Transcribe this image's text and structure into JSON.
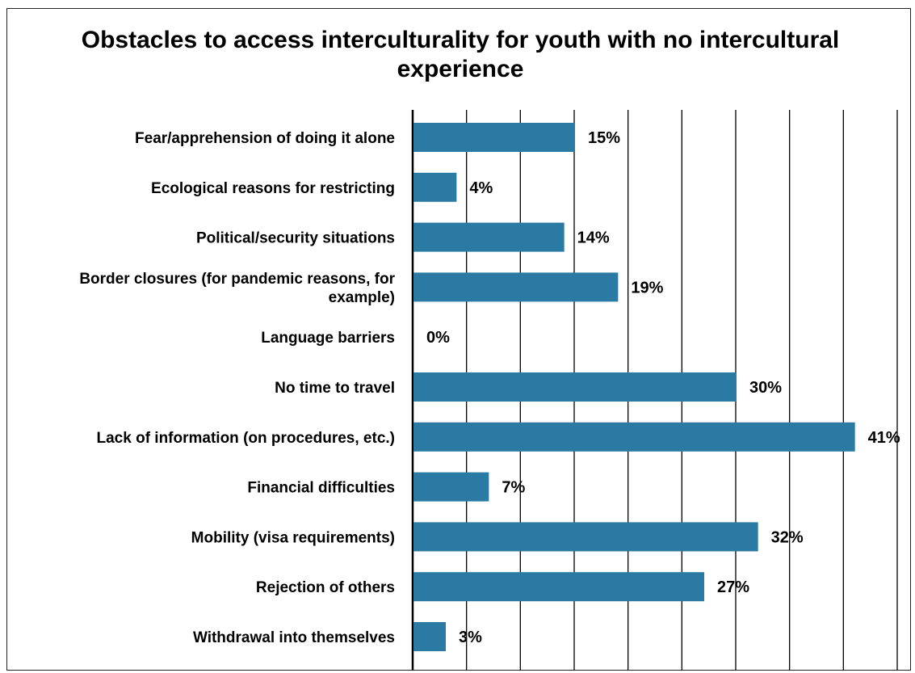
{
  "chart_data": {
    "type": "bar",
    "orientation": "horizontal",
    "title": "Obstacles to access interculturality for youth with no intercultural experience",
    "categories": [
      "Fear/apprehension of doing it alone",
      "Ecological reasons for restricting",
      "Political/security situations",
      "Border closures (for pandemic reasons, for example)",
      "Language barriers",
      "No time to travel",
      "Lack of information (on procedures, etc.)",
      "Financial difficulties",
      "Mobility (visa requirements)",
      "Rejection of others",
      "Withdrawal into themselves"
    ],
    "values": [
      15,
      4,
      14,
      19,
      0,
      30,
      41,
      7,
      32,
      27,
      3
    ],
    "value_labels": [
      "15%",
      "4%",
      "14%",
      "19%",
      "0%",
      "30%",
      "41%",
      "7%",
      "32%",
      "27%",
      "3%"
    ],
    "xlim": [
      0,
      45
    ],
    "grid": true,
    "bar_color": "#2b7aa3"
  }
}
